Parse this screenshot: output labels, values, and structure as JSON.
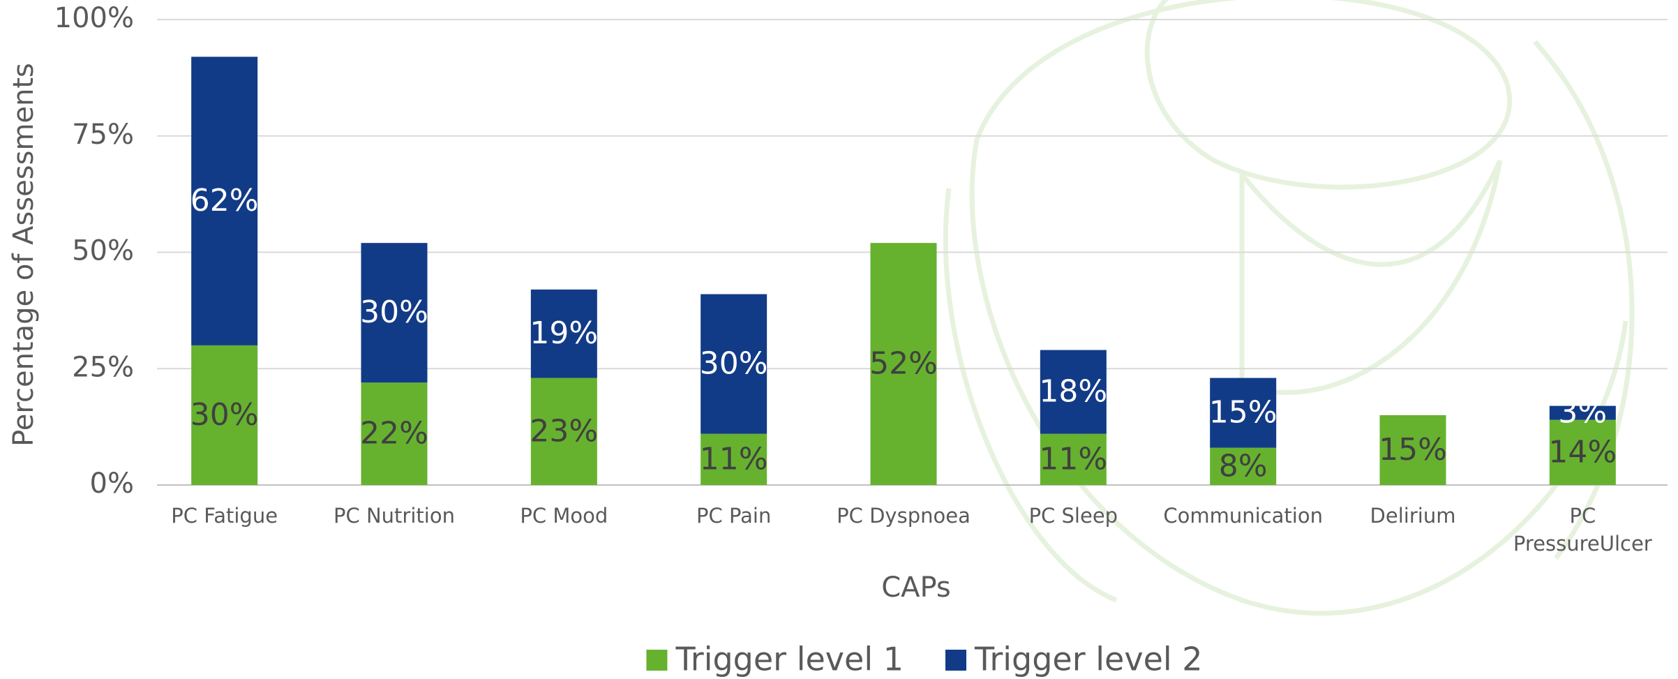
{
  "chart_data": {
    "type": "stacked_bar",
    "y_label": "Percentage of Assessments",
    "x_label": "CAPs",
    "categories": [
      "PC Fatigue",
      "PC Nutrition",
      "PC Mood",
      "PC Pain",
      "PC Dyspnoea",
      "PC Sleep",
      "Communication",
      "Delirium",
      "PC PressureUlcer"
    ],
    "series": [
      {
        "name": "Trigger level 1",
        "color": "#66b22e",
        "label_color": "#404040",
        "values": [
          30,
          22,
          23,
          11,
          52,
          11,
          8,
          15,
          14
        ],
        "value_labels": [
          "30%",
          "22%",
          "23%",
          "11%",
          "52%",
          "11%",
          "8%",
          "15%",
          "14%"
        ]
      },
      {
        "name": "Trigger level 2",
        "color": "#123b87",
        "label_color": "#ffffff",
        "values": [
          62,
          30,
          19,
          30,
          null,
          18,
          15,
          null,
          3
        ],
        "value_labels": [
          "62%",
          "30%",
          "19%",
          "30%",
          null,
          "18%",
          "15%",
          null,
          "3%"
        ]
      }
    ],
    "ylim": [
      0,
      100
    ],
    "yticks": [
      {
        "value": 0,
        "label": "0%"
      },
      {
        "value": 25,
        "label": "25%"
      },
      {
        "value": 50,
        "label": "50%"
      },
      {
        "value": 75,
        "label": "75%"
      },
      {
        "value": 100,
        "label": "100%"
      }
    ],
    "grid": true,
    "legend": "bottom"
  }
}
